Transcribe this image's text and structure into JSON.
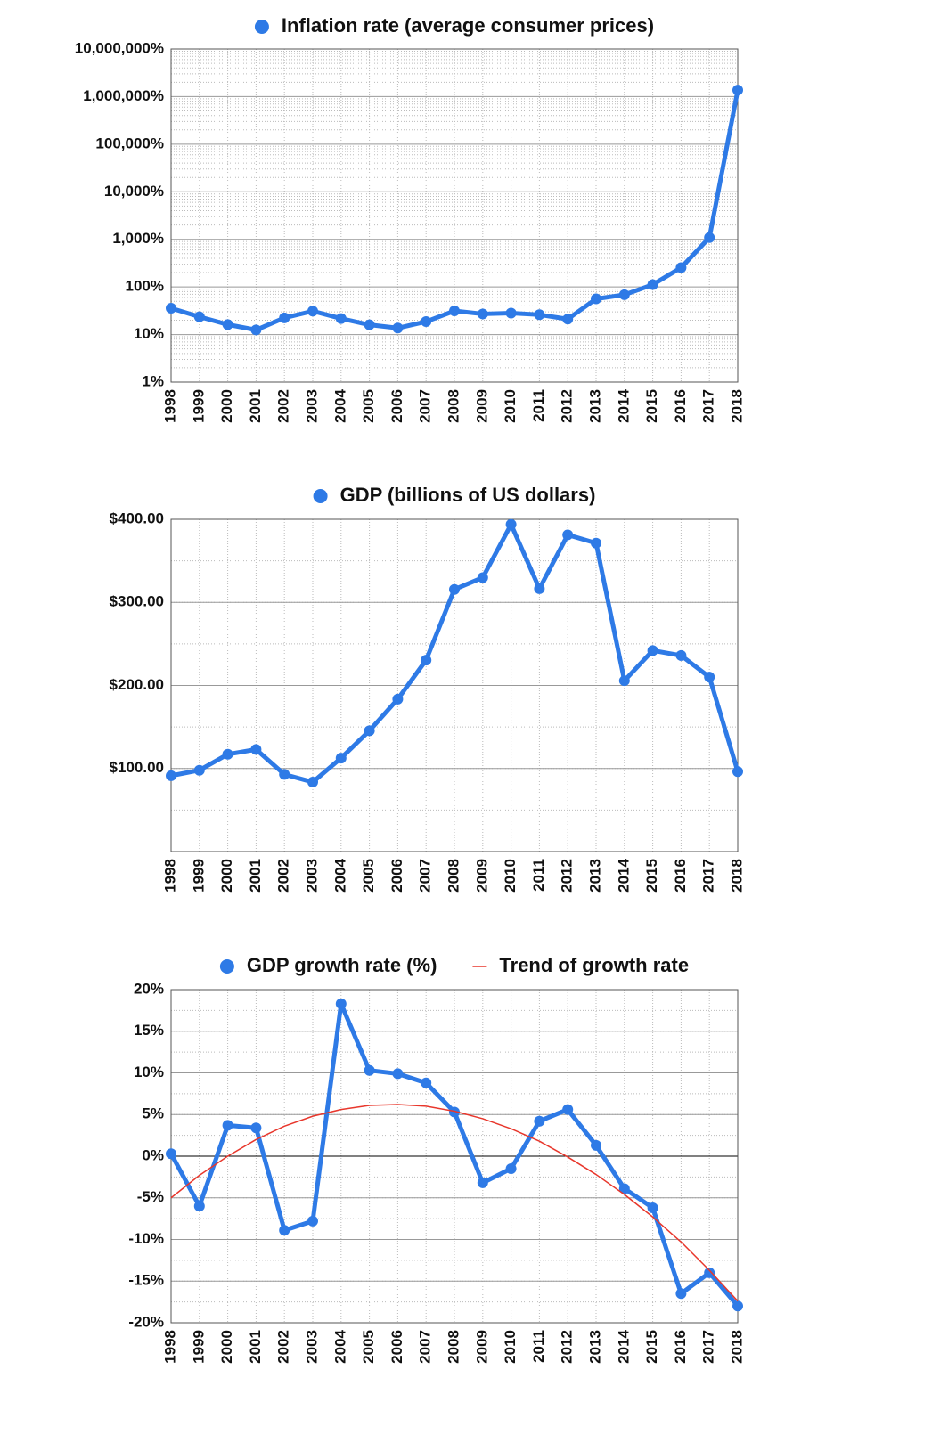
{
  "chart_data": [
    {
      "type": "line",
      "log_scale": true,
      "grid": true,
      "categories": [
        "1998",
        "1999",
        "2000",
        "2001",
        "2002",
        "2003",
        "2004",
        "2005",
        "2006",
        "2007",
        "2008",
        "2009",
        "2010",
        "2011",
        "2012",
        "2013",
        "2014",
        "2015",
        "2016",
        "2017",
        "2018"
      ],
      "series": [
        {
          "name": "Inflation rate (average consumer prices)",
          "color": "#2e7ae6",
          "marker": true,
          "values": [
            35.8,
            23.6,
            16.2,
            12.5,
            22.4,
            31.1,
            21.7,
            16.0,
            13.7,
            18.7,
            31.4,
            27.1,
            28.2,
            26.1,
            21.1,
            56.2,
            68.5,
            111.8,
            254.4,
            1087.5,
            1370000
          ]
        }
      ],
      "ylim": [
        1,
        10000000
      ],
      "yticks": [
        {
          "value": 1,
          "label": "1%"
        },
        {
          "value": 10,
          "label": "10%"
        },
        {
          "value": 100,
          "label": "100%"
        },
        {
          "value": 1000,
          "label": "1,000%"
        },
        {
          "value": 10000,
          "label": "10,000%"
        },
        {
          "value": 100000,
          "label": "100,000%"
        },
        {
          "value": 1000000,
          "label": "1,000,000%"
        },
        {
          "value": 10000000,
          "label": "10,000,000%"
        }
      ]
    },
    {
      "type": "line",
      "log_scale": false,
      "grid": true,
      "categories": [
        "1998",
        "1999",
        "2000",
        "2001",
        "2002",
        "2003",
        "2004",
        "2005",
        "2006",
        "2007",
        "2008",
        "2009",
        "2010",
        "2011",
        "2012",
        "2013",
        "2014",
        "2015",
        "2016",
        "2017",
        "2018"
      ],
      "series": [
        {
          "name": "GDP (billions of US dollars)",
          "color": "#2e7ae6",
          "marker": true,
          "values": [
            91.3,
            97.9,
            117.1,
            122.9,
            92.9,
            83.6,
            112.5,
            145.5,
            183.5,
            230.4,
            315.6,
            329.8,
            393.8,
            316.5,
            381.3,
            371.3,
            205.7,
            242.0,
            236.0,
            210.1,
            96.3
          ]
        }
      ],
      "ylim": [
        0,
        400
      ],
      "yticks": [
        {
          "value": 100,
          "label": "$100.00"
        },
        {
          "value": 200,
          "label": "$200.00"
        },
        {
          "value": 300,
          "label": "$300.00"
        },
        {
          "value": 400,
          "label": "$400.00"
        }
      ]
    },
    {
      "type": "line",
      "log_scale": false,
      "grid": true,
      "categories": [
        "1998",
        "1999",
        "2000",
        "2001",
        "2002",
        "2003",
        "2004",
        "2005",
        "2006",
        "2007",
        "2008",
        "2009",
        "2010",
        "2011",
        "2012",
        "2013",
        "2014",
        "2015",
        "2016",
        "2017",
        "2018"
      ],
      "series": [
        {
          "name": "GDP growth rate (%)",
          "color": "#2e7ae6",
          "marker": true,
          "values": [
            0.3,
            -6.0,
            3.7,
            3.4,
            -8.9,
            -7.8,
            18.3,
            10.3,
            9.9,
            8.8,
            5.3,
            -3.2,
            -1.5,
            4.2,
            5.6,
            1.3,
            -3.9,
            -6.2,
            -16.5,
            -14.0,
            -18.0
          ]
        },
        {
          "name": "Trend of growth rate",
          "color": "#e8372c",
          "marker": false,
          "values": [
            -5.0,
            -2.3,
            0.0,
            2.0,
            3.6,
            4.8,
            5.6,
            6.1,
            6.2,
            6.0,
            5.4,
            4.5,
            3.3,
            1.8,
            -0.1,
            -2.2,
            -4.6,
            -7.3,
            -10.3,
            -13.7,
            -17.4
          ]
        }
      ],
      "ylim": [
        -20,
        20
      ],
      "yticks": [
        {
          "value": -20,
          "label": "-20%"
        },
        {
          "value": -15,
          "label": "-15%"
        },
        {
          "value": -10,
          "label": "-10%"
        },
        {
          "value": -5,
          "label": "-5%"
        },
        {
          "value": 0,
          "label": "0%"
        },
        {
          "value": 5,
          "label": "5%"
        },
        {
          "value": 10,
          "label": "10%"
        },
        {
          "value": 15,
          "label": "15%"
        },
        {
          "value": 20,
          "label": "20%"
        }
      ]
    }
  ]
}
